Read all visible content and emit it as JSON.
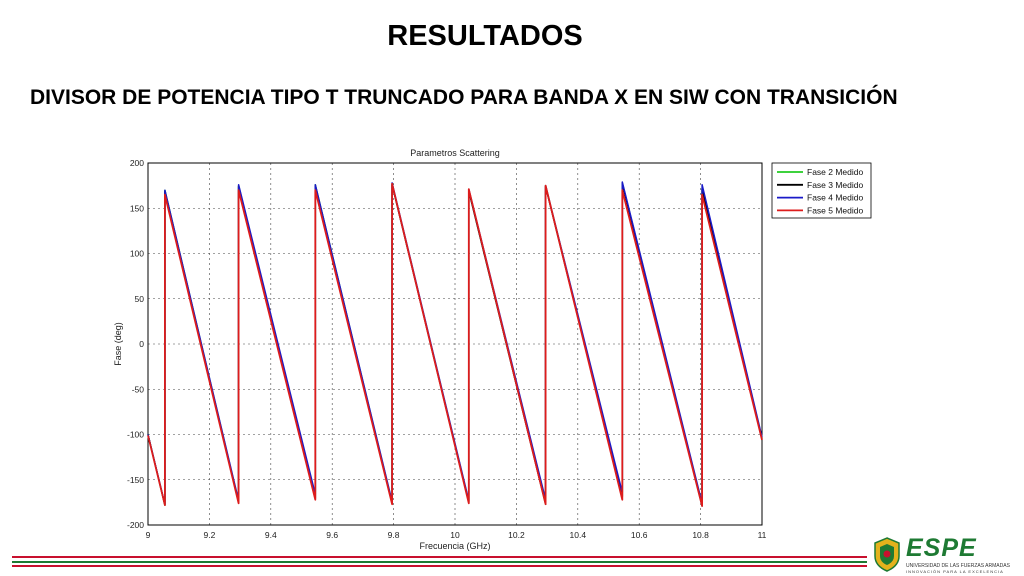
{
  "slide": {
    "title": "RESULTADOS",
    "subtitle": "DIVISOR DE POTENCIA TIPO T TRUNCADO PARA BANDA X EN SIW CON TRANSICIÓN"
  },
  "logo": {
    "name": "ESPE",
    "line1": "UNIVERSIDAD DE LAS FUERZAS ARMADAS",
    "line2": "INNOVACIÓN PARA LA EXCELENCIA",
    "green": "#1e7a33",
    "yellow": "#e3b21c",
    "red": "#c8102e"
  },
  "chart_data": {
    "type": "line",
    "title": "Parametros Scattering",
    "xlabel": "Frecuencia (GHz)",
    "ylabel": "Fase (deg)",
    "xlim": [
      9,
      11
    ],
    "ylim": [
      -200,
      200
    ],
    "xticks": [
      "9",
      "9.2",
      "9.4",
      "9.6",
      "9.8",
      "10",
      "10.2",
      "10.4",
      "10.6",
      "10.8",
      "11"
    ],
    "yticks": [
      "-200",
      "-150",
      "-100",
      "-50",
      "0",
      "50",
      "100",
      "150",
      "200"
    ],
    "grid": true,
    "legend_position": "top-right",
    "series": [
      {
        "name": "Fase 2 Medido",
        "color": "#22cc22",
        "points": [
          [
            9.0,
            -100
          ],
          [
            9.055,
            -178
          ],
          [
            9.055,
            170
          ],
          [
            9.295,
            -174
          ],
          [
            9.295,
            175
          ],
          [
            9.545,
            -170
          ],
          [
            9.545,
            176
          ],
          [
            9.795,
            -175
          ],
          [
            9.795,
            177
          ],
          [
            10.045,
            -174
          ],
          [
            10.045,
            170
          ],
          [
            10.295,
            -176
          ],
          [
            10.295,
            175
          ],
          [
            10.545,
            -168
          ],
          [
            10.545,
            178
          ],
          [
            10.805,
            -178
          ],
          [
            10.805,
            172
          ],
          [
            11.0,
            -104
          ]
        ]
      },
      {
        "name": "Fase 3 Medido",
        "color": "#000000",
        "points": [
          [
            9.0,
            -100
          ],
          [
            9.055,
            -178
          ],
          [
            9.055,
            169
          ],
          [
            9.295,
            -175
          ],
          [
            9.295,
            174
          ],
          [
            9.545,
            -171
          ],
          [
            9.545,
            175
          ],
          [
            9.795,
            -176
          ],
          [
            9.795,
            176
          ],
          [
            10.045,
            -175
          ],
          [
            10.045,
            169
          ],
          [
            10.295,
            -177
          ],
          [
            10.295,
            174
          ],
          [
            10.545,
            -169
          ],
          [
            10.545,
            177
          ],
          [
            10.805,
            -179
          ],
          [
            10.805,
            171
          ],
          [
            11.0,
            -105
          ]
        ]
      },
      {
        "name": "Fase 4 Medido",
        "color": "#1a1ac8",
        "points": [
          [
            9.0,
            -100
          ],
          [
            9.055,
            -177
          ],
          [
            9.055,
            170
          ],
          [
            9.295,
            -173
          ],
          [
            9.295,
            176
          ],
          [
            9.545,
            -166
          ],
          [
            9.545,
            176
          ],
          [
            9.795,
            -174
          ],
          [
            9.795,
            178
          ],
          [
            10.045,
            -173
          ],
          [
            10.045,
            171
          ],
          [
            10.295,
            -172
          ],
          [
            10.295,
            175
          ],
          [
            10.545,
            -164
          ],
          [
            10.545,
            179
          ],
          [
            10.805,
            -176
          ],
          [
            10.805,
            176
          ],
          [
            11.0,
            -103
          ]
        ]
      },
      {
        "name": "Fase 5 Medido",
        "color": "#dd1c1c",
        "points": [
          [
            9.0,
            -101
          ],
          [
            9.055,
            -178
          ],
          [
            9.055,
            165
          ],
          [
            9.295,
            -176
          ],
          [
            9.295,
            170
          ],
          [
            9.545,
            -172
          ],
          [
            9.545,
            170
          ],
          [
            9.795,
            -177
          ],
          [
            9.795,
            177
          ],
          [
            10.045,
            -176
          ],
          [
            10.045,
            171
          ],
          [
            10.295,
            -177
          ],
          [
            10.295,
            175
          ],
          [
            10.545,
            -172
          ],
          [
            10.545,
            170
          ],
          [
            10.805,
            -179
          ],
          [
            10.805,
            165
          ],
          [
            11.0,
            -106
          ]
        ]
      }
    ]
  }
}
